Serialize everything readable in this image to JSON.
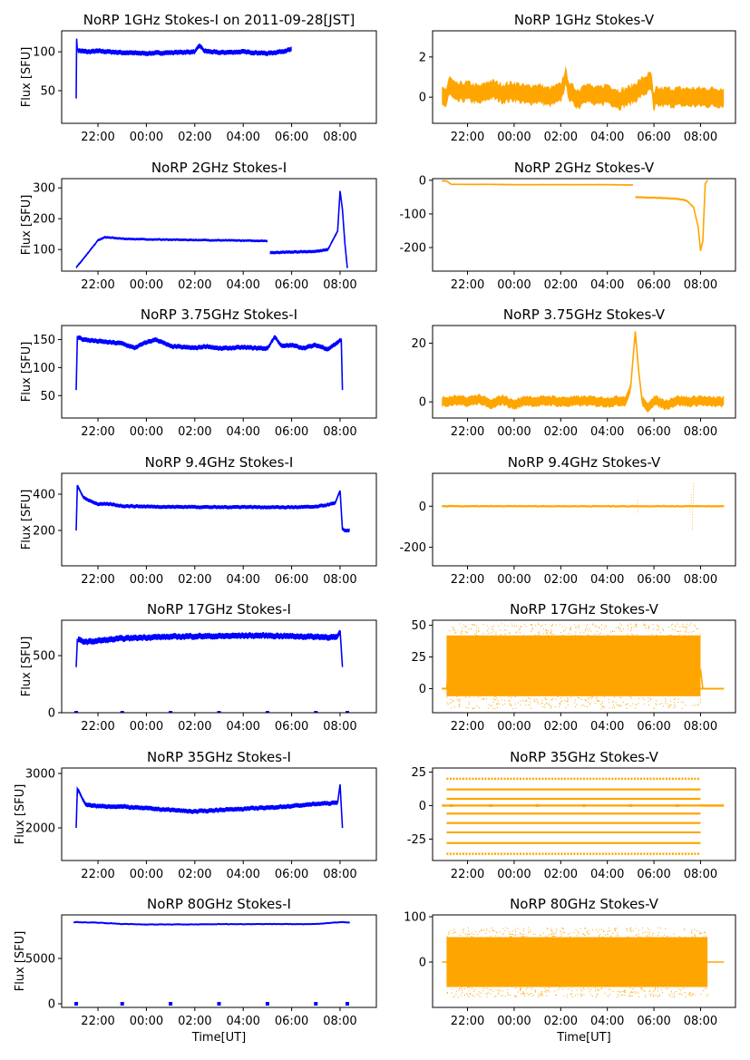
{
  "figure": {
    "x_label": "Time[UT]",
    "y_label": "Flux [SFU]",
    "x_ticks": [
      "22:00",
      "00:00",
      "02:00",
      "04:00",
      "06:00",
      "08:00"
    ],
    "colors": {
      "stokes_i": "#0000ff",
      "stokes_v": "#ffa500",
      "axis": "#000000"
    }
  },
  "chart_data": [
    {
      "id": "i1",
      "type": "line",
      "title": "NoRP 1GHz Stokes-I on 2011-09-28[JST]",
      "ylabel": "Flux [SFU]",
      "xlabel": "",
      "xlim": [
        20.5,
        33.5
      ],
      "ylim": [
        8,
        127
      ],
      "yticks": [
        50,
        100
      ],
      "series": [
        {
          "name": "Stokes-I",
          "color": "#0000ff",
          "t": [
            21.1,
            21.12,
            21.15,
            21.3,
            21.6,
            22.0,
            23.0,
            24.0,
            25.0,
            26.0,
            26.2,
            26.4,
            27.0,
            28.0,
            29.0,
            29.5,
            30.0
          ],
          "v": [
            40,
            117,
            102,
            101,
            100,
            101,
            99,
            98,
            99,
            100,
            108,
            101,
            99,
            100,
            98,
            100,
            103
          ],
          "band": 3
        }
      ]
    },
    {
      "id": "v1",
      "type": "scatter",
      "title": "NoRP 1GHz Stokes-V",
      "ylabel": "",
      "xlabel": "",
      "xlim": [
        20.5,
        33.5
      ],
      "ylim": [
        -1.3,
        3.3
      ],
      "yticks": [
        0,
        2
      ],
      "series": [
        {
          "name": "Stokes-V",
          "color": "#ffa500",
          "t": [
            20.9,
            21.1,
            21.2,
            21.5,
            22.0,
            22.5,
            23.0,
            23.5,
            24.0,
            24.5,
            25.0,
            25.5,
            26.0,
            26.2,
            26.4,
            26.8,
            27.0,
            27.5,
            28.0,
            28.5,
            29.0,
            29.5,
            29.9,
            30.0,
            30.05,
            31.0,
            32.0,
            33.0
          ],
          "v": [
            0,
            0,
            0.6,
            0.2,
            0.3,
            0.1,
            0.4,
            0.2,
            0.3,
            0.1,
            0.2,
            0,
            0.2,
            1.0,
            0.2,
            -0.1,
            0.3,
            0.0,
            0.2,
            -0.1,
            0.1,
            0.5,
            0.8,
            -0.6,
            0,
            0,
            0,
            0
          ],
          "band": 0.45
        }
      ]
    },
    {
      "id": "i2",
      "type": "line",
      "title": "NoRP 2GHz Stokes-I",
      "ylabel": "Flux [SFU]",
      "xlabel": "",
      "xlim": [
        20.5,
        33.5
      ],
      "ylim": [
        30,
        330
      ],
      "yticks": [
        100,
        200,
        300
      ],
      "series": [
        {
          "name": "Stokes-I",
          "color": "#0000ff",
          "t": [
            21.1,
            21.5,
            22.0,
            22.3,
            23.0,
            24.0,
            25.0,
            26.0,
            27.0,
            28.0,
            29.0
          ],
          "v": [
            42,
            80,
            130,
            140,
            135,
            133,
            132,
            131,
            130,
            129,
            128
          ],
          "band": 4
        },
        {
          "name": "Stokes-I",
          "color": "#0000ff",
          "t": [
            29.1,
            30.0,
            30.5,
            31.0,
            31.5,
            31.9,
            32.0,
            32.1,
            32.2,
            32.3
          ],
          "v": [
            90,
            92,
            93,
            94,
            100,
            160,
            290,
            230,
            120,
            40
          ],
          "band": 5
        }
      ]
    },
    {
      "id": "v2",
      "type": "scatter",
      "title": "NoRP 2GHz Stokes-V",
      "ylabel": "",
      "xlabel": "",
      "xlim": [
        20.5,
        33.5
      ],
      "ylim": [
        -270,
        5
      ],
      "yticks": [
        0,
        -100,
        -200
      ],
      "series": [
        {
          "name": "Stokes-V",
          "color": "#ffa500",
          "t": [
            20.9,
            21.1,
            21.3,
            22.0,
            23.0,
            24.0,
            25.0,
            26.0,
            27.0,
            28.0,
            29.1
          ],
          "v": [
            -2,
            -2,
            -12,
            -12,
            -12,
            -13,
            -13,
            -13,
            -13,
            -13,
            -14
          ],
          "band": 2
        },
        {
          "name": "Stokes-V",
          "color": "#ffa500",
          "t": [
            29.2,
            30.0,
            30.5,
            31.0,
            31.4,
            31.7,
            31.9,
            32.0,
            32.1,
            32.2,
            32.3
          ],
          "v": [
            -50,
            -52,
            -53,
            -55,
            -60,
            -80,
            -140,
            -210,
            -180,
            -10,
            0
          ],
          "band": 3
        }
      ]
    },
    {
      "id": "i3",
      "type": "line",
      "title": "NoRP 3.75GHz Stokes-I",
      "ylabel": "Flux [SFU]",
      "xlabel": "",
      "xlim": [
        20.5,
        33.5
      ],
      "ylim": [
        10,
        175
      ],
      "yticks": [
        50,
        100,
        150
      ],
      "series": [
        {
          "name": "Stokes-I",
          "color": "#0000ff",
          "t": [
            21.1,
            21.15,
            21.4,
            22.0,
            23.0,
            23.5,
            24.0,
            24.4,
            25.0,
            26.0,
            26.5,
            27.0,
            28.0,
            29.0,
            29.3,
            29.6,
            30.0,
            30.5,
            31.0,
            31.5,
            31.9,
            32.05,
            32.1
          ],
          "v": [
            60,
            155,
            150,
            147,
            143,
            135,
            145,
            150,
            138,
            135,
            138,
            134,
            136,
            134,
            155,
            138,
            140,
            135,
            140,
            133,
            145,
            150,
            60
          ],
          "band": 4
        }
      ]
    },
    {
      "id": "v3",
      "type": "scatter",
      "title": "NoRP 3.75GHz Stokes-V",
      "ylabel": "",
      "xlabel": "",
      "xlim": [
        20.5,
        33.5
      ],
      "ylim": [
        -5.5,
        26
      ],
      "yticks": [
        0,
        20
      ],
      "series": [
        {
          "name": "Stokes-V",
          "color": "#ffa500",
          "t": [
            20.9,
            21.1,
            21.5,
            22.0,
            22.5,
            23.0,
            23.5,
            24.0,
            24.5,
            25.0,
            25.5,
            26.0,
            27.0,
            28.0,
            28.8,
            29.0,
            29.2,
            29.35,
            29.5,
            29.7,
            30.0,
            30.5,
            31.0,
            31.5,
            32.0,
            32.3,
            33.0
          ],
          "v": [
            0,
            0,
            0.5,
            0,
            1,
            -1,
            0.8,
            -1,
            0.5,
            0,
            0.5,
            0,
            0.3,
            0,
            0.5,
            5,
            24,
            10,
            0,
            -2,
            0.5,
            -1,
            0.5,
            0,
            0.5,
            0,
            0
          ],
          "band": 1.6
        }
      ]
    },
    {
      "id": "i4",
      "type": "line",
      "title": "NoRP 9.4GHz Stokes-I",
      "ylabel": "Flux [SFU]",
      "xlabel": "",
      "xlim": [
        20.5,
        33.5
      ],
      "ylim": [
        5,
        515
      ],
      "yticks": [
        200,
        400
      ],
      "series": [
        {
          "name": "Stokes-I",
          "color": "#0000ff",
          "t": [
            21.1,
            21.15,
            21.4,
            22.0,
            22.5,
            23.0,
            24.0,
            25.0,
            26.0,
            27.0,
            28.0,
            29.0,
            30.0,
            31.0,
            31.8,
            32.0,
            32.1,
            32.2,
            32.4
          ],
          "v": [
            200,
            450,
            380,
            345,
            345,
            335,
            332,
            330,
            330,
            328,
            330,
            328,
            328,
            330,
            350,
            420,
            205,
            200,
            200
          ],
          "band": 10
        }
      ]
    },
    {
      "id": "v4",
      "type": "scatter",
      "title": "NoRP 9.4GHz Stokes-V",
      "ylabel": "",
      "xlabel": "",
      "xlim": [
        20.5,
        33.5
      ],
      "ylim": [
        -290,
        160
      ],
      "yticks": [
        0,
        -200
      ],
      "series": [
        {
          "name": "Stokes-V",
          "color": "#ffa500",
          "t": [
            20.9,
            22.0,
            24.0,
            26.0,
            28.0,
            30.0,
            32.0,
            33.0
          ],
          "v": [
            0,
            0,
            0,
            0,
            0,
            0,
            0,
            0
          ],
          "band": 5
        }
      ]
    },
    {
      "id": "i5",
      "type": "line",
      "title": "NoRP 17GHz Stokes-I",
      "ylabel": "Flux [SFU]",
      "xlabel": "",
      "xlim": [
        20.5,
        33.5
      ],
      "ylim": [
        0,
        810
      ],
      "yticks": [
        0,
        500
      ],
      "series": [
        {
          "name": "Stokes-I",
          "color": "#0000ff",
          "t": [
            21.1,
            21.15,
            21.5,
            22.0,
            23.0,
            24.0,
            25.0,
            26.0,
            27.0,
            28.0,
            29.0,
            30.0,
            31.0,
            31.9,
            32.0,
            32.1
          ],
          "v": [
            400,
            640,
            620,
            630,
            650,
            660,
            665,
            670,
            670,
            675,
            675,
            670,
            665,
            660,
            720,
            400
          ],
          "band": 25
        }
      ]
    },
    {
      "id": "v5",
      "type": "scatter",
      "title": "NoRP 17GHz Stokes-V",
      "ylabel": "",
      "xlabel": "",
      "xlim": [
        20.5,
        33.5
      ],
      "ylim": [
        -19,
        54
      ],
      "yticks": [
        0,
        25,
        50
      ],
      "series": [
        {
          "name": "Stokes-V",
          "color": "#ffa500",
          "t": [
            20.9,
            21.1,
            21.2,
            32.0,
            32.1,
            33.0
          ],
          "v": [
            0,
            0,
            15,
            15,
            0,
            0
          ],
          "band": 0
        }
      ]
    },
    {
      "id": "i6",
      "type": "line",
      "title": "NoRP 35GHz Stokes-I",
      "ylabel": "Flux [SFU]",
      "xlabel": "",
      "xlim": [
        20.5,
        33.5
      ],
      "ylim": [
        1400,
        3100
      ],
      "yticks": [
        2000,
        3000
      ],
      "series": [
        {
          "name": "Stokes-I",
          "color": "#0000ff",
          "t": [
            21.1,
            21.15,
            21.5,
            22.0,
            23.0,
            24.0,
            25.0,
            26.0,
            27.0,
            28.0,
            29.0,
            30.0,
            31.0,
            31.9,
            32.0,
            32.1
          ],
          "v": [
            2000,
            2720,
            2420,
            2400,
            2390,
            2360,
            2330,
            2300,
            2330,
            2350,
            2370,
            2400,
            2440,
            2460,
            2800,
            2000
          ],
          "band": 40
        }
      ]
    },
    {
      "id": "v6",
      "type": "scatter",
      "title": "NoRP 35GHz Stokes-V",
      "ylabel": "",
      "xlabel": "",
      "xlim": [
        20.5,
        33.5
      ],
      "ylim": [
        -41,
        28
      ],
      "yticks": [
        25,
        0,
        -25
      ],
      "levels": [
        20,
        12,
        5,
        0,
        -6,
        -13,
        -20,
        -28,
        -36
      ],
      "series": []
    },
    {
      "id": "i7",
      "type": "line",
      "title": "NoRP 80GHz Stokes-I",
      "ylabel": "Flux [SFU]",
      "xlabel": "Time[UT]",
      "xlim": [
        20.5,
        33.5
      ],
      "ylim": [
        -400,
        9800
      ],
      "yticks": [
        0,
        5000
      ],
      "series": [
        {
          "name": "Stokes-I",
          "color": "#0000ff",
          "t": [
            21.0,
            22.0,
            23.0,
            24.0,
            25.0,
            26.0,
            27.0,
            28.0,
            29.0,
            30.0,
            31.0,
            32.0,
            32.4
          ],
          "v": [
            9000,
            8950,
            8800,
            8750,
            8750,
            8750,
            8780,
            8780,
            8800,
            8780,
            8800,
            9000,
            8950
          ],
          "band": 100
        }
      ]
    },
    {
      "id": "v7",
      "type": "scatter",
      "title": "NoRP 80GHz Stokes-V",
      "ylabel": "",
      "xlabel": "Time[UT]",
      "xlim": [
        20.5,
        33.5
      ],
      "ylim": [
        -100,
        104
      ],
      "yticks": [
        100,
        0
      ],
      "series": [
        {
          "name": "Stokes-V",
          "color": "#ffa500",
          "t": [
            20.9,
            33.0
          ],
          "v": [
            0,
            0
          ],
          "band": 0
        }
      ]
    }
  ]
}
